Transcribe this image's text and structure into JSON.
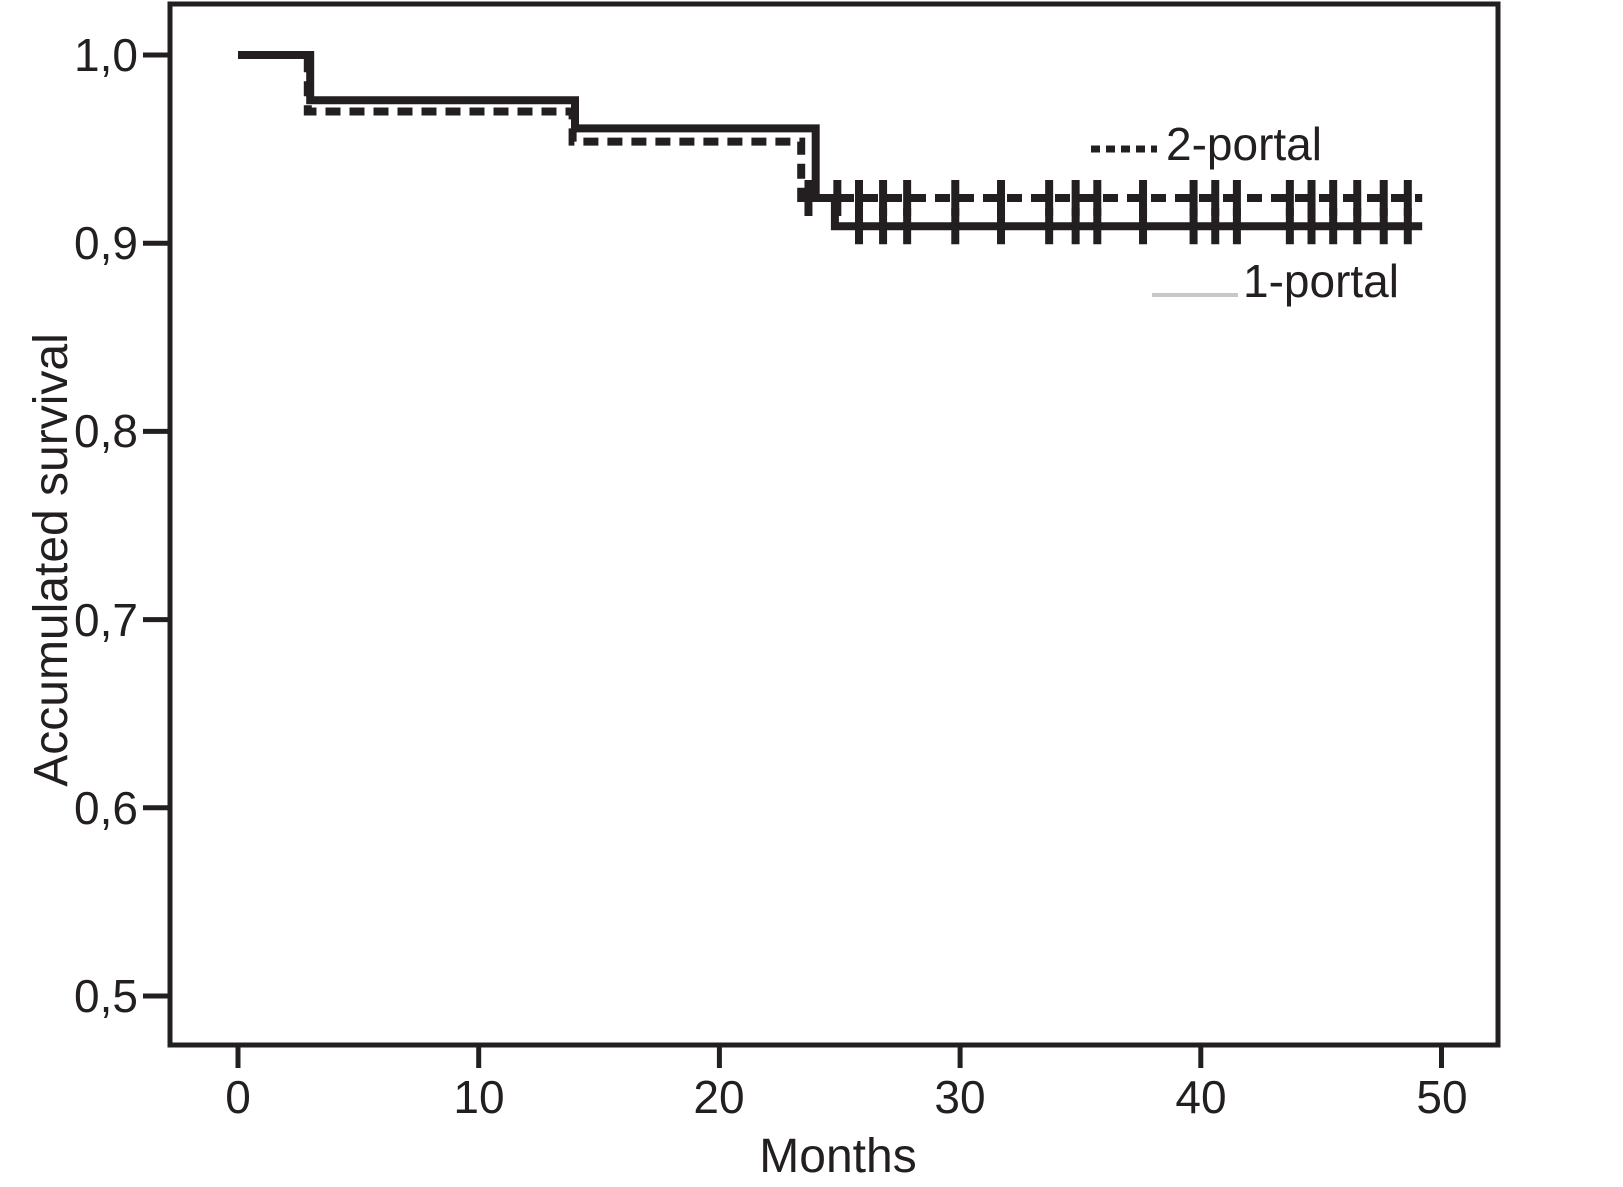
{
  "chart_data": {
    "type": "line",
    "variant": "kaplan-meier-step",
    "title": "",
    "xlabel": "Months",
    "ylabel": "Accumulated survival",
    "x_axis": {
      "title": "Months",
      "ticks": [
        0,
        10,
        20,
        30,
        40,
        50
      ],
      "tick_labels": [
        "0",
        "10",
        "20",
        "30",
        "40",
        "50"
      ],
      "range": [
        -2.8,
        52.3
      ]
    },
    "y_axis": {
      "title": "Accumulated survival",
      "ticks": [
        1.0,
        0.9,
        0.8,
        0.7,
        0.6,
        0.5
      ],
      "tick_labels": [
        "1,0",
        "0,9",
        "0,8",
        "0,7",
        "0,6",
        "0,5"
      ],
      "range": [
        0.47,
        1.03
      ],
      "decimal_separator": ","
    },
    "grid": "off",
    "censor_marker": "+",
    "series": [
      {
        "name": "2-portal",
        "style": "dashed",
        "color": "#231f20",
        "steps": [
          [
            0,
            1.0
          ],
          [
            2.9,
            0.97
          ],
          [
            13.9,
            0.954
          ],
          [
            23.4,
            0.924
          ],
          [
            49.2,
            0.924
          ]
        ],
        "censor_months": [
          23.7,
          24.9,
          25.8,
          26.8,
          27.8,
          29.8,
          31.7,
          33.7,
          34.8,
          35.7,
          37.6,
          39.7,
          40.6,
          41.5,
          43.7,
          44.6,
          45.5,
          46.5,
          47.6,
          48.6
        ]
      },
      {
        "name": "1-portal",
        "style": "solid",
        "color": "#231f20",
        "steps": [
          [
            0,
            1.0
          ],
          [
            3.0,
            0.976
          ],
          [
            14.0,
            0.961
          ],
          [
            24.0,
            0.924
          ],
          [
            24.8,
            0.909
          ],
          [
            49.2,
            0.909
          ]
        ],
        "censor_months": [
          25.8,
          26.8,
          27.8,
          29.8,
          31.7,
          33.7,
          34.8,
          35.7,
          37.6,
          39.7,
          40.6,
          41.5,
          43.7,
          44.6,
          45.5,
          46.5,
          47.6,
          48.6
        ]
      }
    ],
    "legend": [
      {
        "label": "2-portal",
        "sample": "dashed-black-line"
      },
      {
        "label": "1-portal",
        "sample": "solid-gray-line"
      }
    ],
    "legend_position": "inside-top-right",
    "colors": {
      "line": "#231f20",
      "text": "#231f20",
      "legend_gray": "#c8c8c8",
      "background": "#ffffff"
    }
  }
}
